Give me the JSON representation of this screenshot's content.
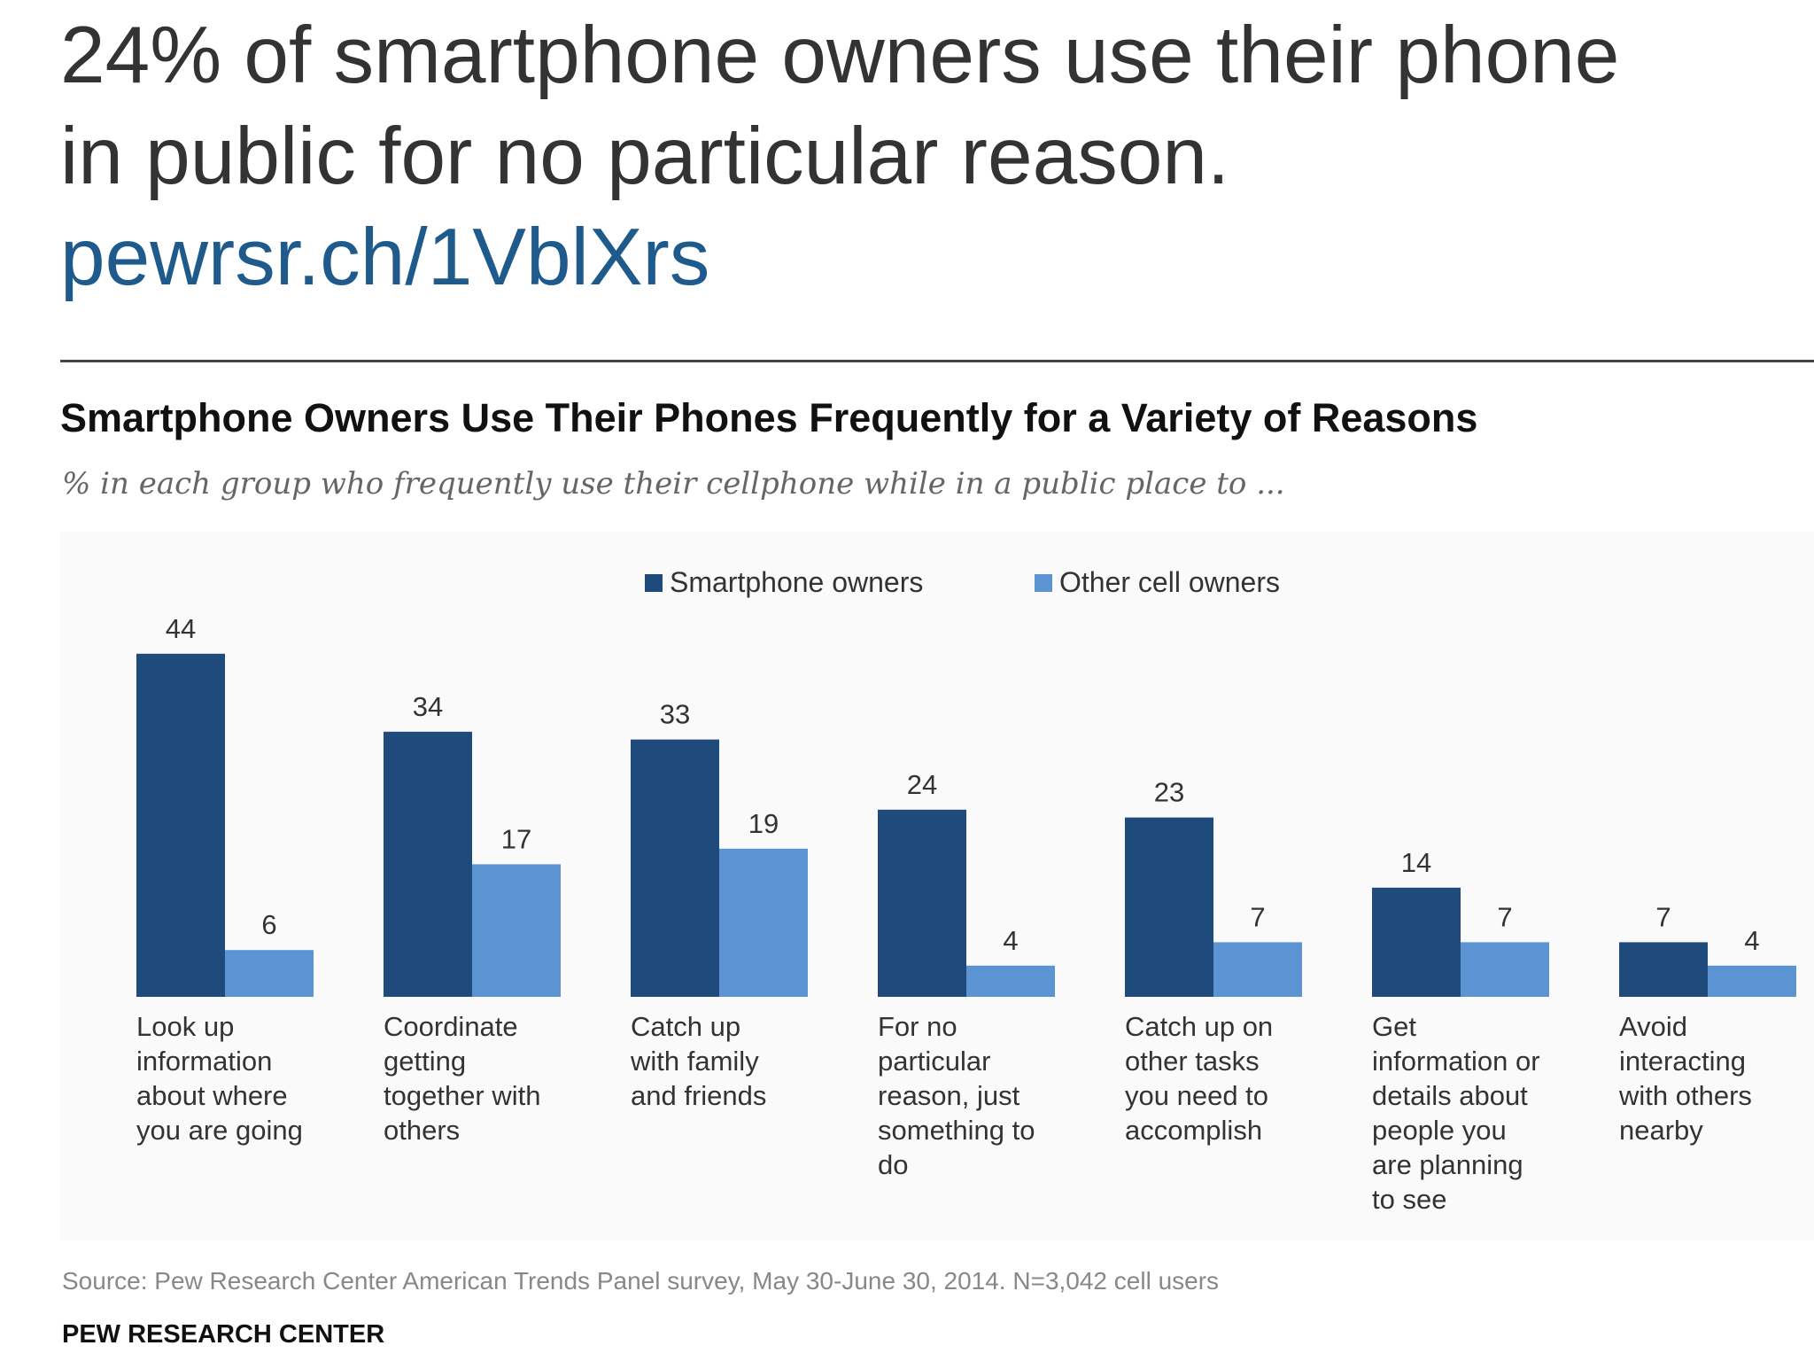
{
  "header": {
    "headline_line1": "24% of smartphone owners use their phone",
    "headline_line2": "in public for no particular reason.",
    "link": "pewrsr.ch/1VblXrs",
    "link_color": "#1f5a8c"
  },
  "chart_data": {
    "type": "bar",
    "title": "Smartphone Owners Use Their Phones Frequently for a Variety of Reasons",
    "subtitle": "% in each group who frequently use their cellphone while in a public place to ...",
    "xlabel": "",
    "ylabel": "",
    "ylim": [
      0,
      50
    ],
    "legend_position": "top-center",
    "categories": [
      [
        "Look up",
        "information",
        "about where",
        "you are going"
      ],
      [
        "Coordinate",
        "getting",
        "together with",
        "others"
      ],
      [
        "Catch up",
        "with family",
        "and friends"
      ],
      [
        "For no",
        "particular",
        "reason, just",
        "something to",
        "do"
      ],
      [
        "Catch up on",
        "other tasks",
        "you need to",
        "accomplish"
      ],
      [
        "Get",
        "information or",
        "details about",
        "people you",
        "are planning",
        "to see"
      ],
      [
        "Avoid",
        "interacting",
        "with others",
        "nearby"
      ]
    ],
    "series": [
      {
        "name": "Smartphone owners",
        "color": "#1f4a7c",
        "values": [
          44,
          34,
          33,
          24,
          23,
          14,
          7
        ]
      },
      {
        "name": "Other cell owners",
        "color": "#5b93d3",
        "values": [
          6,
          17,
          19,
          4,
          7,
          7,
          4
        ]
      }
    ]
  },
  "footer": {
    "source": "Source: Pew Research Center American Trends Panel survey, May 30-June 30, 2014. N=3,042 cell users",
    "organization": "PEW RESEARCH CENTER"
  }
}
